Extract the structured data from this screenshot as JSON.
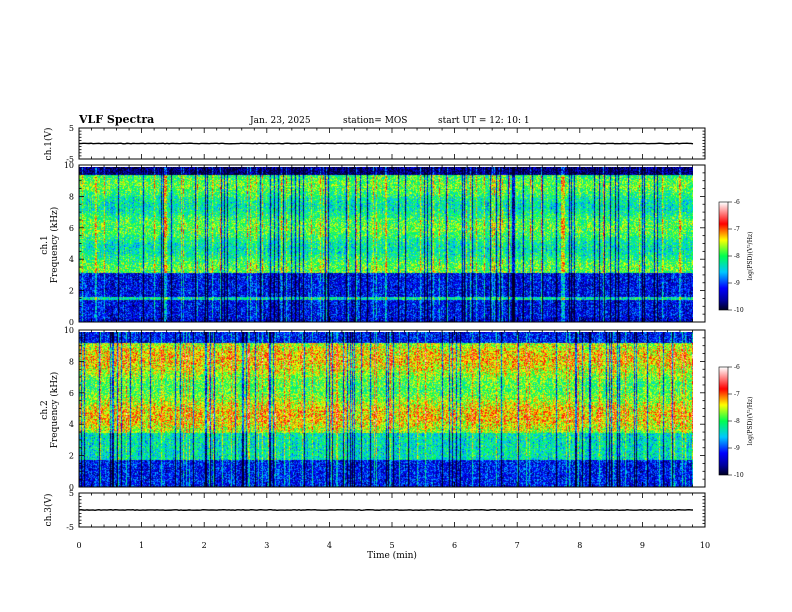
{
  "header": {
    "title": "VLF Spectra",
    "date": "Jan. 23, 2025",
    "station": "station= MOS",
    "start": "start  UT  =   12: 10: 1"
  },
  "colorbar": {
    "label": "log(PSD)(V²/Hz)",
    "ticks": [
      "-6",
      "-7",
      "-8",
      "-9",
      "-10"
    ],
    "colors": [
      "#ffffff",
      "#ff0000",
      "#ffff00",
      "#00ff00",
      "#00c8ff",
      "#0000ff",
      "#000020"
    ]
  },
  "chart_data": [
    {
      "type": "line",
      "name": "ch.1 waveform",
      "ylabel": "ch.1(V)",
      "ylim": [
        -5,
        5
      ],
      "yticks": [
        "5",
        "-5"
      ],
      "xlim": [
        0,
        10
      ],
      "x": [
        0,
        9.82
      ],
      "y": [
        0,
        0
      ]
    },
    {
      "type": "heatmap",
      "name": "ch.1 spectrogram",
      "ylabel": "ch.1\nFrequency (kHz)",
      "xlim": [
        0,
        10
      ],
      "ylim": [
        0,
        10
      ],
      "yticks": [
        "0",
        "2",
        "4",
        "6",
        "8",
        "10"
      ],
      "data_extent_x": [
        0,
        9.82
      ],
      "zlim": [
        -10,
        -6
      ]
    },
    {
      "type": "heatmap",
      "name": "ch.2 spectrogram",
      "ylabel": "ch.2\nFrequency (kHz)",
      "xlim": [
        0,
        10
      ],
      "ylim": [
        0,
        10
      ],
      "yticks": [
        "0",
        "2",
        "4",
        "6",
        "8",
        "10"
      ],
      "data_extent_x": [
        0,
        9.82
      ],
      "zlim": [
        -10,
        -6
      ]
    },
    {
      "type": "line",
      "name": "ch.3 waveform",
      "ylabel": "ch.3(V)",
      "ylim": [
        -5,
        5
      ],
      "yticks": [
        "5",
        "-5"
      ],
      "xlim": [
        0,
        10
      ],
      "xlabel": "Time  (min)",
      "xticks": [
        "0",
        "1",
        "2",
        "3",
        "4",
        "5",
        "6",
        "7",
        "8",
        "9",
        "10"
      ],
      "x": [
        0,
        9.82
      ],
      "y": [
        0,
        0
      ]
    }
  ]
}
